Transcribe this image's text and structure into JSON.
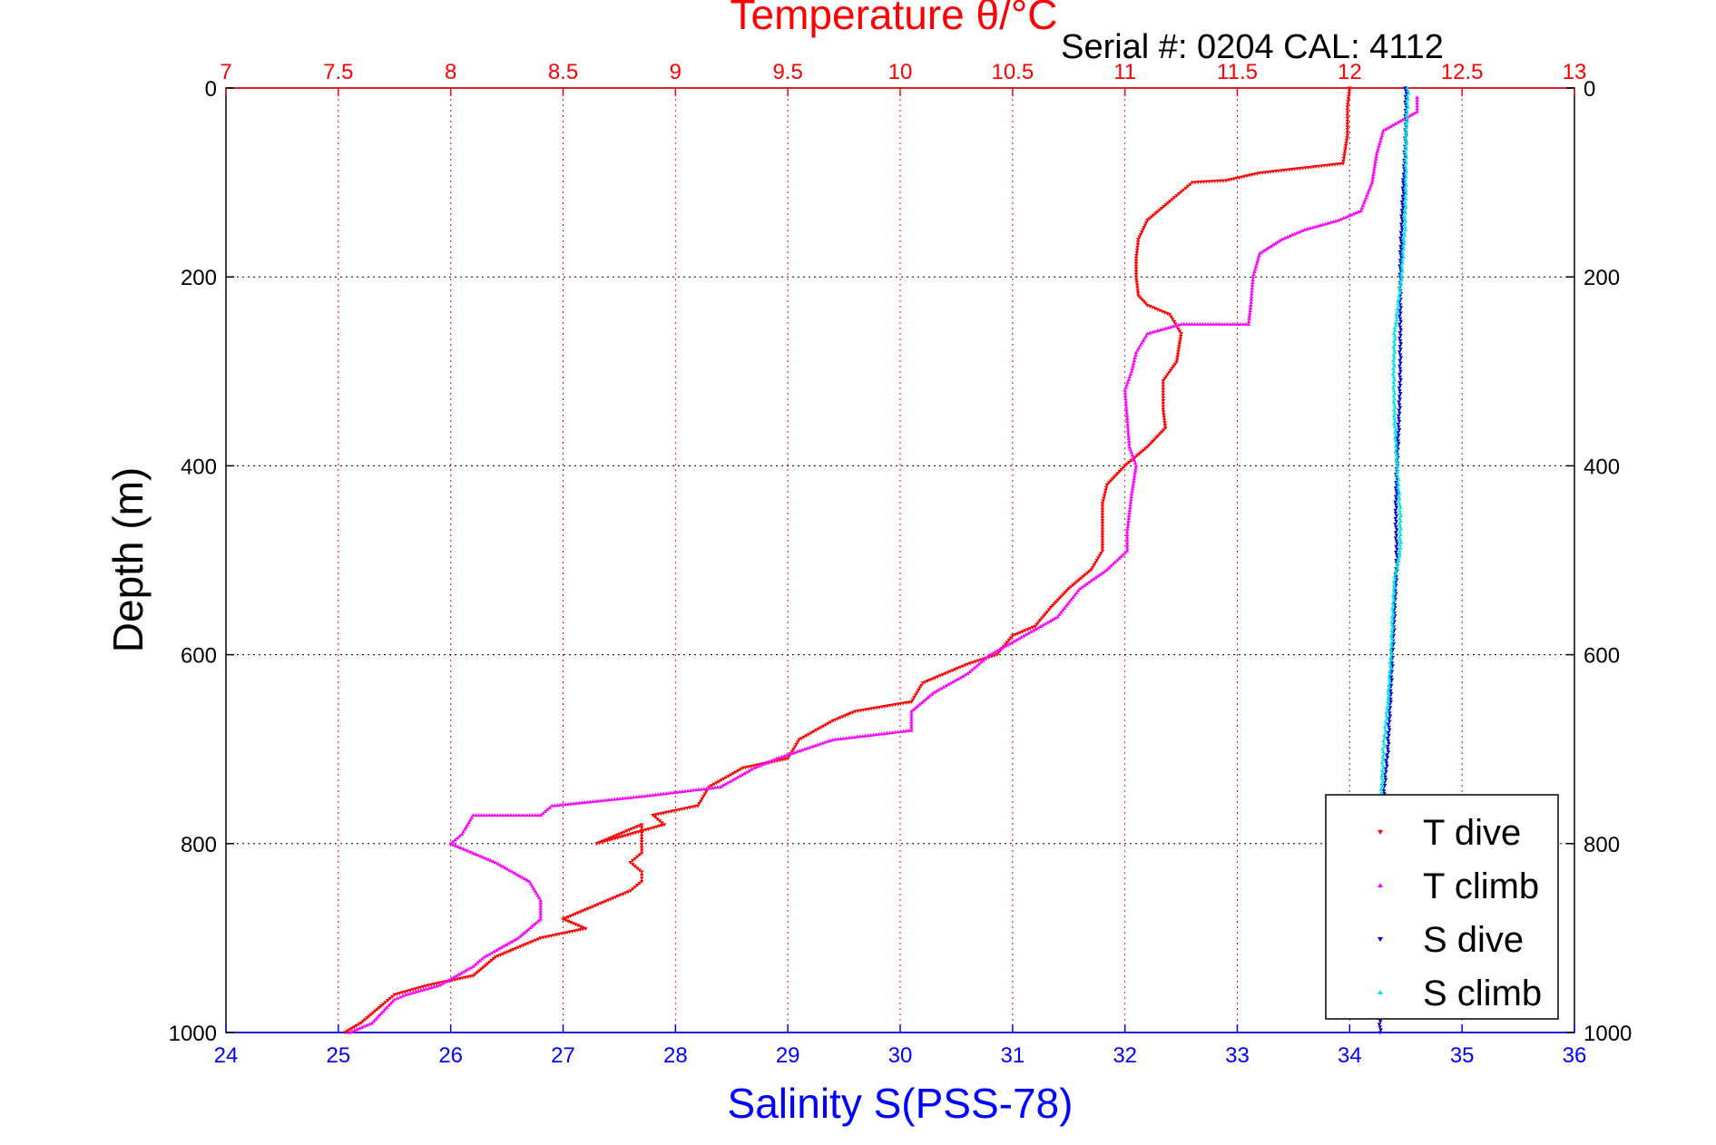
{
  "chart_data": {
    "type": "scatter",
    "title": "Temperature θ/°C",
    "subtitle": "Serial #: 0204  CAL: 4112",
    "xlabel": "Salinity S(PSS-78)",
    "ylabel": "Depth (m)",
    "x_bottom": {
      "label": "Salinity S(PSS-78)",
      "range": [
        24,
        36
      ],
      "ticks": [
        24,
        25,
        26,
        27,
        28,
        29,
        30,
        31,
        32,
        33,
        34,
        35,
        36
      ],
      "color": "#0000ff"
    },
    "x_top": {
      "label": "Temperature θ/°C",
      "range": [
        7,
        13
      ],
      "ticks": [
        7,
        7.5,
        8,
        8.5,
        9,
        9.5,
        10,
        10.5,
        11,
        11.5,
        12,
        12.5,
        13
      ],
      "color": "#ff0000"
    },
    "y": {
      "range": [
        0,
        1000
      ],
      "reversed": true,
      "ticks": [
        0,
        200,
        400,
        600,
        800,
        1000
      ]
    },
    "grid": true,
    "legend_position": "bottom-right",
    "series": [
      {
        "name": "T dive",
        "axis": "top",
        "color": "#ff0000",
        "marker": "triangle-down",
        "points": [
          [
            12.0,
            0
          ],
          [
            11.99,
            20
          ],
          [
            11.99,
            50
          ],
          [
            11.97,
            80
          ],
          [
            11.6,
            90
          ],
          [
            11.45,
            98
          ],
          [
            11.3,
            100
          ],
          [
            11.25,
            110
          ],
          [
            11.2,
            120
          ],
          [
            11.1,
            140
          ],
          [
            11.06,
            160
          ],
          [
            11.05,
            180
          ],
          [
            11.05,
            200
          ],
          [
            11.06,
            220
          ],
          [
            11.1,
            230
          ],
          [
            11.2,
            240
          ],
          [
            11.25,
            260
          ],
          [
            11.23,
            290
          ],
          [
            11.17,
            310
          ],
          [
            11.17,
            340
          ],
          [
            11.18,
            360
          ],
          [
            11.1,
            380
          ],
          [
            11.0,
            400
          ],
          [
            10.92,
            420
          ],
          [
            10.9,
            440
          ],
          [
            10.9,
            470
          ],
          [
            10.9,
            490
          ],
          [
            10.85,
            510
          ],
          [
            10.75,
            530
          ],
          [
            10.67,
            550
          ],
          [
            10.6,
            570
          ],
          [
            10.5,
            580
          ],
          [
            10.43,
            600
          ],
          [
            10.3,
            610
          ],
          [
            10.1,
            630
          ],
          [
            10.05,
            650
          ],
          [
            9.8,
            660
          ],
          [
            9.7,
            670
          ],
          [
            9.55,
            690
          ],
          [
            9.5,
            710
          ],
          [
            9.3,
            720
          ],
          [
            9.15,
            740
          ],
          [
            9.1,
            760
          ],
          [
            8.9,
            770
          ],
          [
            8.95,
            780
          ],
          [
            8.8,
            790
          ],
          [
            8.65,
            800
          ],
          [
            8.85,
            780
          ],
          [
            8.85,
            810
          ],
          [
            8.8,
            820
          ],
          [
            8.85,
            830
          ],
          [
            8.85,
            840
          ],
          [
            8.8,
            850
          ],
          [
            8.7,
            860
          ],
          [
            8.6,
            870
          ],
          [
            8.5,
            880
          ],
          [
            8.6,
            890
          ],
          [
            8.4,
            900
          ],
          [
            8.2,
            920
          ],
          [
            8.1,
            940
          ],
          [
            7.9,
            950
          ],
          [
            7.75,
            960
          ],
          [
            7.7,
            970
          ],
          [
            7.6,
            990
          ],
          [
            7.53,
            1000
          ]
        ]
      },
      {
        "name": "T climb",
        "axis": "top",
        "color": "#ff00ff",
        "marker": "triangle-up",
        "points": [
          [
            12.3,
            10
          ],
          [
            12.3,
            25
          ],
          [
            12.15,
            45
          ],
          [
            12.12,
            70
          ],
          [
            12.1,
            100
          ],
          [
            12.05,
            130
          ],
          [
            11.95,
            140
          ],
          [
            11.8,
            150
          ],
          [
            11.7,
            160
          ],
          [
            11.6,
            175
          ],
          [
            11.57,
            200
          ],
          [
            11.56,
            230
          ],
          [
            11.55,
            250
          ],
          [
            11.25,
            250
          ],
          [
            11.1,
            260
          ],
          [
            11.05,
            280
          ],
          [
            11.03,
            300
          ],
          [
            11.0,
            320
          ],
          [
            11.01,
            350
          ],
          [
            11.02,
            380
          ],
          [
            11.05,
            400
          ],
          [
            11.03,
            430
          ],
          [
            11.01,
            470
          ],
          [
            11.01,
            490
          ],
          [
            10.92,
            510
          ],
          [
            10.8,
            530
          ],
          [
            10.7,
            560
          ],
          [
            10.55,
            580
          ],
          [
            10.4,
            600
          ],
          [
            10.35,
            610
          ],
          [
            10.3,
            620
          ],
          [
            10.15,
            640
          ],
          [
            10.05,
            660
          ],
          [
            10.05,
            680
          ],
          [
            9.7,
            690
          ],
          [
            9.45,
            710
          ],
          [
            9.35,
            720
          ],
          [
            9.2,
            740
          ],
          [
            8.85,
            750
          ],
          [
            8.45,
            760
          ],
          [
            8.4,
            770
          ],
          [
            8.1,
            770
          ],
          [
            8.05,
            790
          ],
          [
            8.0,
            800
          ],
          [
            8.2,
            820
          ],
          [
            8.35,
            840
          ],
          [
            8.4,
            860
          ],
          [
            8.4,
            880
          ],
          [
            8.3,
            900
          ],
          [
            8.15,
            920
          ],
          [
            8.1,
            930
          ],
          [
            7.95,
            950
          ],
          [
            7.8,
            960
          ],
          [
            7.75,
            965
          ],
          [
            7.65,
            990
          ],
          [
            7.55,
            1000
          ]
        ]
      },
      {
        "name": "S dive",
        "axis": "bottom",
        "color": "#0000cc",
        "marker": "triangle-down",
        "points": [
          [
            34.5,
            0
          ],
          [
            34.5,
            50
          ],
          [
            34.48,
            100
          ],
          [
            34.46,
            150
          ],
          [
            34.45,
            200
          ],
          [
            34.45,
            250
          ],
          [
            34.45,
            300
          ],
          [
            34.44,
            350
          ],
          [
            34.42,
            400
          ],
          [
            34.41,
            450
          ],
          [
            34.42,
            500
          ],
          [
            34.4,
            550
          ],
          [
            34.38,
            600
          ],
          [
            34.36,
            650
          ],
          [
            34.34,
            700
          ],
          [
            34.3,
            750
          ],
          [
            34.3,
            800
          ],
          [
            34.3,
            850
          ],
          [
            34.28,
            900
          ],
          [
            34.27,
            950
          ],
          [
            34.27,
            1000
          ]
        ]
      },
      {
        "name": "S climb",
        "axis": "bottom",
        "color": "#00e5e5",
        "marker": "triangle-up",
        "points": [
          [
            34.52,
            0
          ],
          [
            34.5,
            50
          ],
          [
            34.5,
            100
          ],
          [
            34.49,
            150
          ],
          [
            34.46,
            200
          ],
          [
            34.4,
            260
          ],
          [
            34.39,
            300
          ],
          [
            34.4,
            350
          ],
          [
            34.42,
            400
          ],
          [
            34.45,
            450
          ],
          [
            34.45,
            490
          ],
          [
            34.4,
            520
          ],
          [
            34.38,
            560
          ],
          [
            34.37,
            600
          ],
          [
            34.34,
            650
          ],
          [
            34.3,
            700
          ],
          [
            34.28,
            760
          ],
          [
            34.25,
            800
          ]
        ]
      }
    ]
  },
  "legend": {
    "entries": [
      {
        "label": "T dive",
        "color": "#ff0000"
      },
      {
        "label": "T climb",
        "color": "#ff00ff"
      },
      {
        "label": "S dive",
        "color": "#0000cc"
      },
      {
        "label": "S climb",
        "color": "#00e5e5"
      }
    ]
  }
}
